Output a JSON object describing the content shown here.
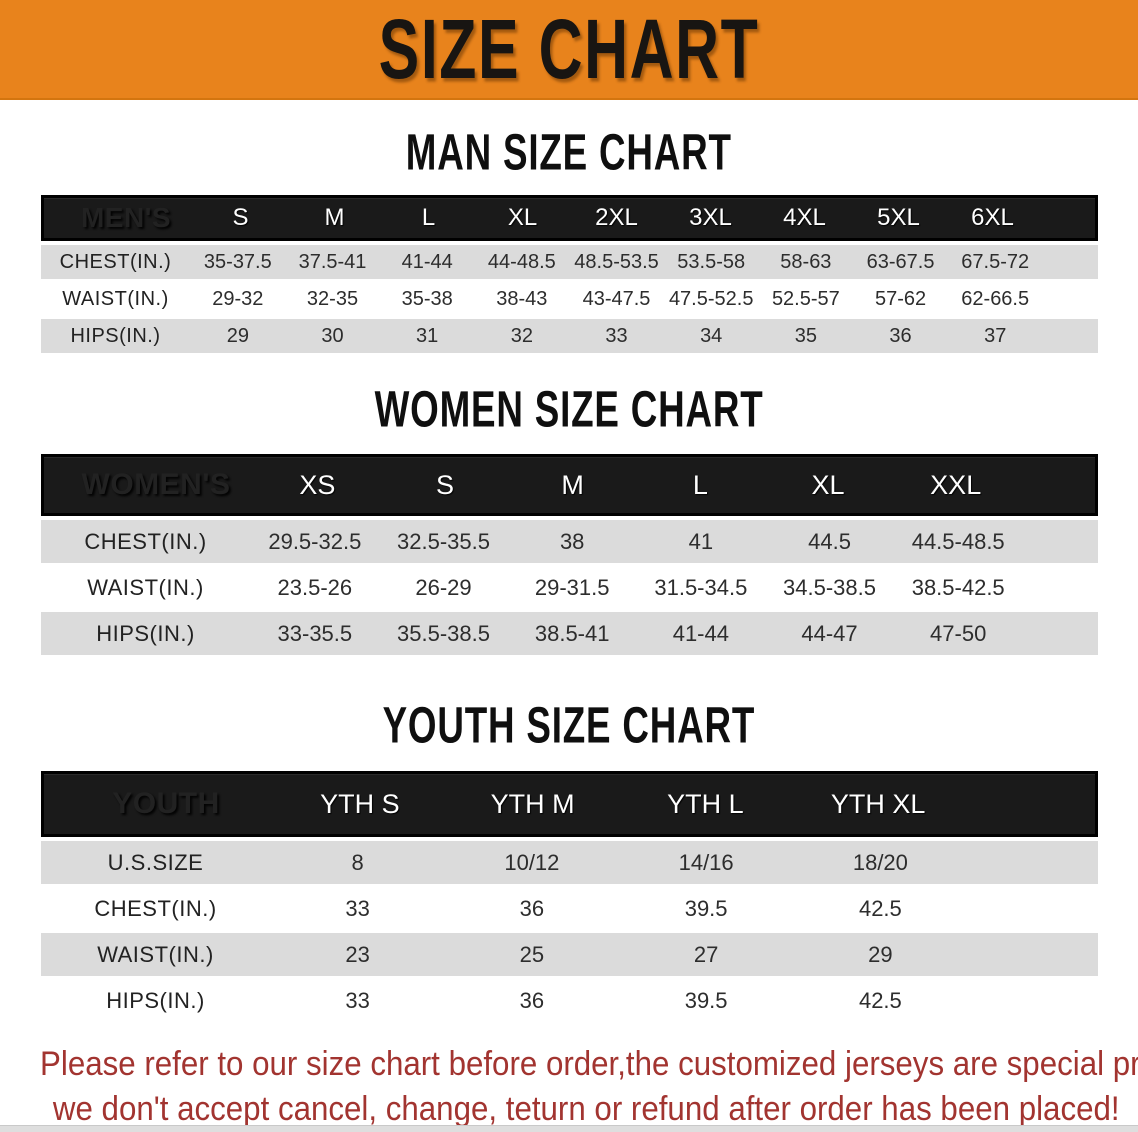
{
  "banner": {
    "title": "SIZE CHART",
    "bg_color": "#E8831C",
    "text_color": "#181512"
  },
  "sections": [
    {
      "heading": "MAN SIZE CHART",
      "table": {
        "header_label": "MEN'S",
        "columns": [
          "S",
          "M",
          "L",
          "XL",
          "2XL",
          "3XL",
          "4XL",
          "5XL",
          "6XL"
        ],
        "rows": [
          {
            "label": "CHEST(IN.)",
            "values": [
              "35-37.5",
              "37.5-41",
              "41-44",
              "44-48.5",
              "48.5-53.5",
              "53.5-58",
              "58-63",
              "63-67.5",
              "67.5-72"
            ]
          },
          {
            "label": "WAIST(IN.)",
            "values": [
              "29-32",
              "32-35",
              "35-38",
              "38-43",
              "43-47.5",
              "47.5-52.5",
              "52.5-57",
              "57-62",
              "62-66.5"
            ]
          },
          {
            "label": "HIPS(IN.)",
            "values": [
              "29",
              "30",
              "31",
              "32",
              "33",
              "34",
              "35",
              "36",
              "37"
            ]
          }
        ]
      }
    },
    {
      "heading": "WOMEN SIZE CHART",
      "table": {
        "header_label": "WOMEN'S",
        "columns": [
          "XS",
          "S",
          "M",
          "L",
          "XL",
          "XXL"
        ],
        "rows": [
          {
            "label": "CHEST(IN.)",
            "values": [
              "29.5-32.5",
              "32.5-35.5",
              "38",
              "41",
              "44.5",
              "44.5-48.5"
            ]
          },
          {
            "label": "WAIST(IN.)",
            "values": [
              "23.5-26",
              "26-29",
              "29-31.5",
              "31.5-34.5",
              "34.5-38.5",
              "38.5-42.5"
            ]
          },
          {
            "label": "HIPS(IN.)",
            "values": [
              "33-35.5",
              "35.5-38.5",
              "38.5-41",
              "41-44",
              "44-47",
              "47-50"
            ]
          }
        ]
      }
    },
    {
      "heading": "YOUTH SIZE CHART",
      "table": {
        "header_label": "YOUTH",
        "columns": [
          "YTH S",
          "YTH M",
          "YTH L",
          "YTH XL"
        ],
        "rows": [
          {
            "label": "U.S.SIZE",
            "values": [
              "8",
              "10/12",
              "14/16",
              "18/20"
            ]
          },
          {
            "label": "CHEST(IN.)",
            "values": [
              "33",
              "36",
              "39.5",
              "42.5"
            ]
          },
          {
            "label": "WAIST(IN.)",
            "values": [
              "23",
              "25",
              "27",
              "29"
            ]
          },
          {
            "label": "HIPS(IN.)",
            "values": [
              "33",
              "36",
              "39.5",
              "42.5"
            ]
          }
        ]
      }
    }
  ],
  "footer_note": {
    "line1": "Please refer to our size chart before order,the customized jerseys are special products,",
    "line2": "we don't accept cancel, change, teturn or refund after order has been placed!",
    "text_color": "#A23430"
  },
  "colors": {
    "banner_orange": "#E8831C",
    "table_header_black": "#1A1A1A",
    "row_stripe_gray": "#DBDBDB",
    "note_red": "#A23430"
  }
}
